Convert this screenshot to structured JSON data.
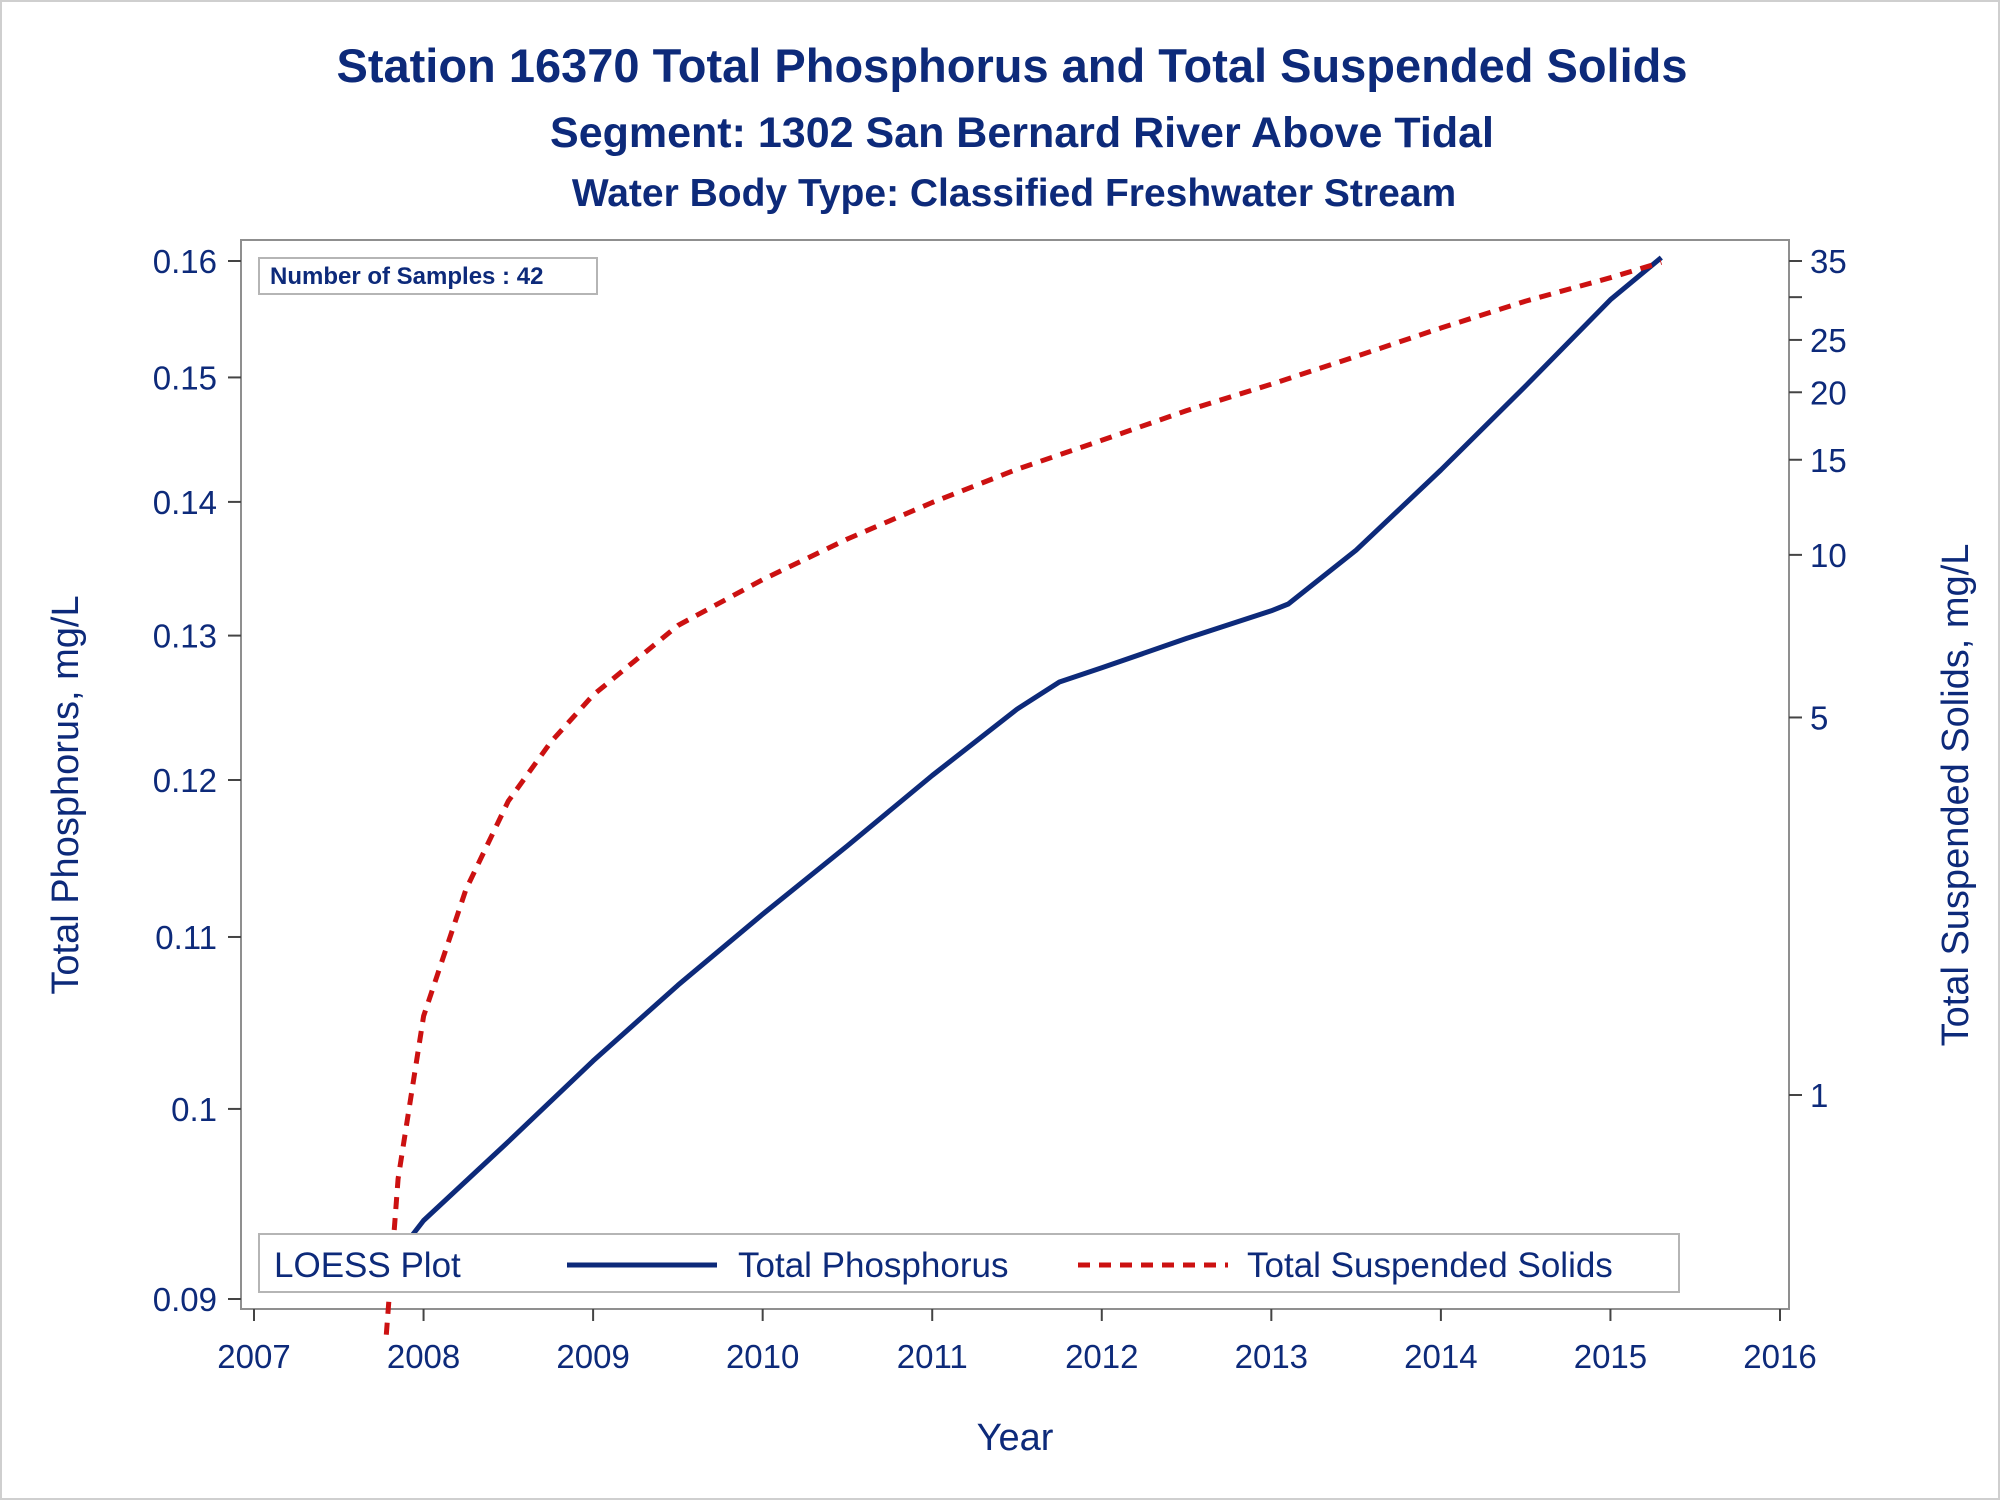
{
  "chart_data": {
    "type": "line",
    "title": "Station 16370  Total Phosphorus and Total Suspended Solids",
    "subtitle": "Segment: 1302  San Bernard River Above Tidal",
    "subtitle2": "Water Body Type: Classified Freshwater Stream",
    "xlabel": "Year",
    "ylabel": "Total Phosphorus, mg/L",
    "y2label": "Total Suspended Solids, mg/L",
    "xlim": [
      2007,
      2016
    ],
    "xticks": [
      "2007",
      "2008",
      "2009",
      "2010",
      "2011",
      "2012",
      "2013",
      "2014",
      "2015",
      "2016"
    ],
    "y_scale": "log",
    "ylim": [
      0.09,
      0.16
    ],
    "yticks": [
      "0.09",
      "0.1",
      "0.11",
      "0.12",
      "0.13",
      "0.14",
      "0.15",
      "0.16"
    ],
    "y2_scale": "log",
    "y2ticks": [
      "1",
      "5",
      "10",
      "15",
      "20",
      "25",
      "35"
    ],
    "inset": "Number of Samples : 42",
    "legend_title": "LOESS Plot",
    "legend_position": "bottom-inside",
    "grid": false,
    "series": [
      {
        "name": "Total Phosphorus",
        "axis": "left",
        "color": "#0d2a7a",
        "style": "solid",
        "x": [
          2007.85,
          2008.0,
          2008.5,
          2009.0,
          2009.5,
          2010.0,
          2010.5,
          2011.0,
          2011.5,
          2011.75,
          2012.0,
          2012.5,
          2013.0,
          2013.1,
          2013.5,
          2014.0,
          2014.5,
          2015.0,
          2015.3
        ],
        "y": [
          0.0923,
          0.094,
          0.0982,
          0.1027,
          0.1071,
          0.1114,
          0.1157,
          0.1203,
          0.1248,
          0.1267,
          0.1277,
          0.1298,
          0.1318,
          0.1323,
          0.1363,
          0.1425,
          0.1493,
          0.1566,
          0.1603
        ]
      },
      {
        "name": "Total Suspended Solids",
        "axis": "right",
        "color": "#cc1111",
        "style": "dashed",
        "x": [
          2007.78,
          2007.85,
          2008.0,
          2008.25,
          2008.5,
          2008.75,
          2009.0,
          2009.5,
          2010.0,
          2010.5,
          2011.0,
          2011.5,
          2012.0,
          2012.5,
          2013.0,
          2013.5,
          2014.0,
          2014.5,
          2015.0,
          2015.3
        ],
        "y": [
          0.36,
          0.7,
          1.4,
          2.4,
          3.5,
          4.5,
          5.5,
          7.4,
          9.0,
          10.7,
          12.5,
          14.4,
          16.3,
          18.5,
          20.7,
          23.3,
          26.3,
          29.5,
          32.6,
          34.8
        ]
      }
    ]
  }
}
